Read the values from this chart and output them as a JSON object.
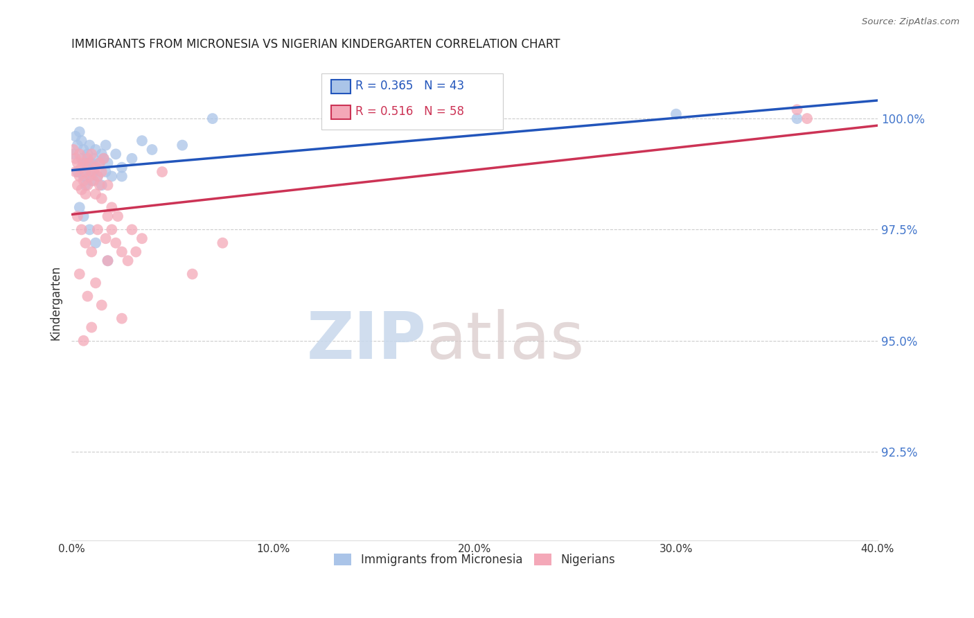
{
  "title": "IMMIGRANTS FROM MICRONESIA VS NIGERIAN KINDERGARTEN CORRELATION CHART",
  "source": "Source: ZipAtlas.com",
  "ylabel": "Kindergarten",
  "y_ticks": [
    92.5,
    95.0,
    97.5,
    100.0
  ],
  "y_tick_labels": [
    "92.5%",
    "95.0%",
    "97.5%",
    "100.0%"
  ],
  "x_range": [
    0.0,
    40.0
  ],
  "y_range": [
    90.5,
    101.2
  ],
  "legend1_label": "Immigrants from Micronesia",
  "legend2_label": "Nigerians",
  "corr_blue_R": "0.365",
  "corr_blue_N": "43",
  "corr_pink_R": "0.516",
  "corr_pink_N": "58",
  "blue_color": "#aac4e8",
  "pink_color": "#f4a8b8",
  "blue_line_color": "#2255bb",
  "pink_line_color": "#cc3355",
  "blue_x": [
    0.1,
    0.2,
    0.3,
    0.3,
    0.4,
    0.5,
    0.5,
    0.6,
    0.6,
    0.7,
    0.7,
    0.8,
    0.8,
    0.9,
    1.0,
    1.0,
    1.1,
    1.1,
    1.2,
    1.3,
    1.4,
    1.5,
    1.5,
    1.6,
    1.7,
    1.7,
    1.8,
    2.0,
    2.2,
    2.5,
    3.0,
    3.5,
    4.0,
    5.5,
    7.0,
    0.4,
    0.6,
    0.9,
    1.2,
    1.8,
    2.5,
    30.0,
    36.0
  ],
  "blue_y": [
    99.2,
    99.6,
    99.4,
    98.8,
    99.7,
    99.5,
    99.1,
    99.3,
    98.7,
    99.0,
    98.5,
    99.2,
    98.9,
    99.4,
    99.0,
    98.6,
    99.1,
    98.8,
    99.3,
    98.7,
    99.0,
    99.2,
    98.5,
    99.1,
    98.8,
    99.4,
    99.0,
    98.7,
    99.2,
    98.9,
    99.1,
    99.5,
    99.3,
    99.4,
    100.0,
    98.0,
    97.8,
    97.5,
    97.2,
    96.8,
    98.7,
    100.1,
    100.0
  ],
  "pink_x": [
    0.1,
    0.2,
    0.2,
    0.3,
    0.3,
    0.4,
    0.4,
    0.5,
    0.5,
    0.6,
    0.6,
    0.7,
    0.7,
    0.8,
    0.8,
    0.9,
    0.9,
    1.0,
    1.0,
    1.1,
    1.2,
    1.2,
    1.3,
    1.4,
    1.4,
    1.5,
    1.5,
    1.6,
    1.8,
    1.8,
    2.0,
    2.0,
    2.2,
    2.5,
    2.8,
    3.0,
    3.2,
    3.5,
    4.5,
    0.3,
    0.5,
    0.7,
    1.0,
    1.3,
    1.7,
    2.3,
    0.4,
    0.8,
    1.2,
    1.8,
    2.5,
    0.6,
    1.0,
    1.5,
    36.0,
    36.5,
    6.0,
    7.5
  ],
  "pink_y": [
    99.3,
    99.1,
    98.8,
    99.0,
    98.5,
    98.7,
    99.2,
    98.9,
    98.4,
    98.6,
    99.0,
    98.3,
    98.8,
    99.1,
    98.5,
    98.7,
    99.0,
    98.8,
    99.2,
    98.6,
    98.9,
    98.3,
    98.7,
    98.5,
    99.0,
    98.2,
    98.8,
    99.1,
    97.8,
    98.5,
    98.0,
    97.5,
    97.2,
    97.0,
    96.8,
    97.5,
    97.0,
    97.3,
    98.8,
    97.8,
    97.5,
    97.2,
    97.0,
    97.5,
    97.3,
    97.8,
    96.5,
    96.0,
    96.3,
    96.8,
    95.5,
    95.0,
    95.3,
    95.8,
    100.2,
    100.0,
    96.5,
    97.2
  ]
}
